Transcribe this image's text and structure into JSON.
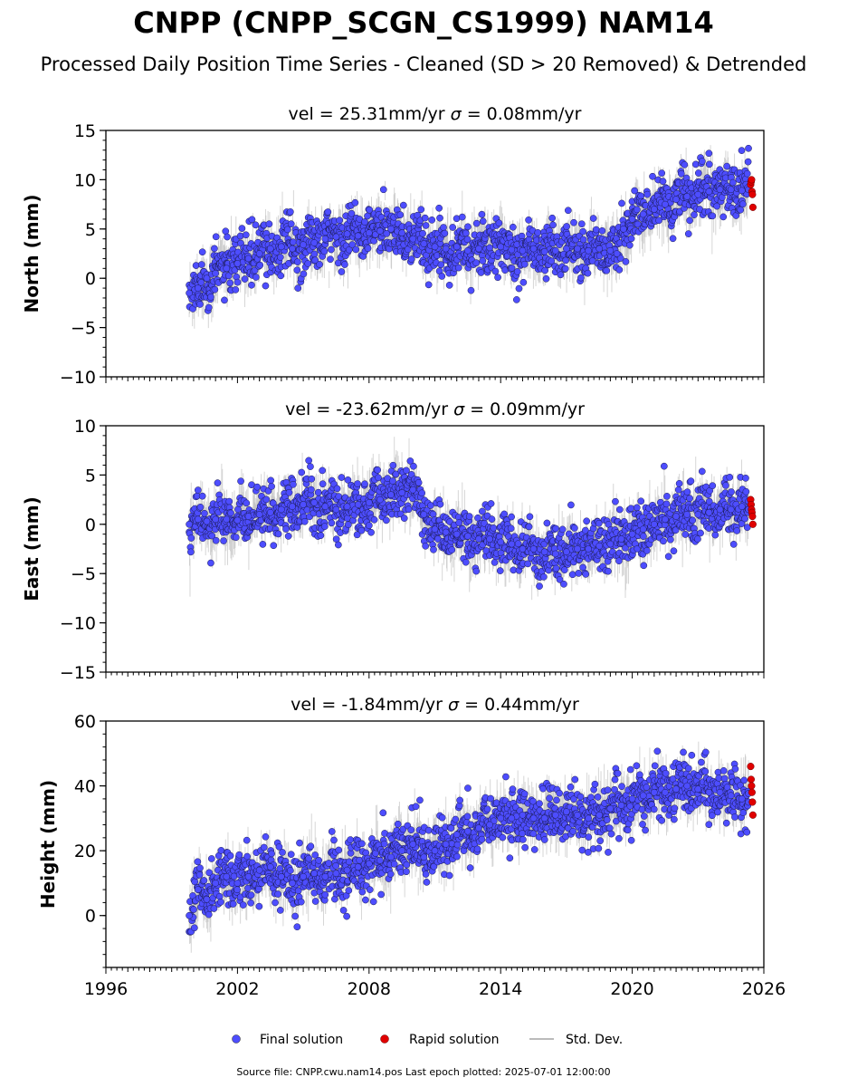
{
  "title": "CNPP (CNPP_SCGN_CS1999) NAM14",
  "subtitle": "Processed Daily Position Time Series - Cleaned (SD > 20 Removed) & Detrended",
  "legend": {
    "final": "Final solution",
    "rapid": "Rapid solution",
    "std": "Std. Dev."
  },
  "footer": "Source file: CNPP.cwu.nam14.pos  Last epoch plotted: 2025-07-01 12:00:00",
  "colors": {
    "final": "#4d4dff",
    "rapid": "#e00000",
    "std": "#bbbbbb"
  },
  "chart_data": [
    {
      "type": "scatter",
      "title_prefix": "vel = 25.31mm/yr",
      "sigma_label": "σ",
      "sigma_value": " = 0.08mm/yr",
      "ylabel": "North (mm)",
      "xlim": [
        1996,
        2026
      ],
      "ylim": [
        -10,
        15
      ],
      "xticks": [
        1996,
        2002,
        2008,
        2014,
        2020,
        2026
      ],
      "yticks": [
        -10,
        -5,
        0,
        5,
        10,
        15
      ],
      "show_xtick_labels": false,
      "series": [
        {
          "name": "Final solution",
          "x": [
            1999.8,
            2000.2,
            2000.6,
            2001.0,
            2001.5,
            2002.0,
            2002.5,
            2003.0,
            2003.5,
            2004.0,
            2004.5,
            2005.0,
            2005.5,
            2006.0,
            2006.5,
            2007.0,
            2007.5,
            2008.0,
            2008.5,
            2009.0,
            2009.5,
            2010.0,
            2010.5,
            2011.0,
            2011.5,
            2012.0,
            2012.5,
            2013.0,
            2013.5,
            2014.0,
            2014.5,
            2015.0,
            2015.5,
            2016.0,
            2016.5,
            2017.0,
            2017.5,
            2018.0,
            2018.5,
            2019.0,
            2019.3,
            2019.6,
            2020.0,
            2020.5,
            2021.0,
            2021.5,
            2022.0,
            2022.5,
            2023.0,
            2023.5,
            2024.0,
            2024.5,
            2025.0,
            2025.3
          ],
          "y": [
            -1.5,
            -1.0,
            0.0,
            0.5,
            1.0,
            1.5,
            2.0,
            2.5,
            3.0,
            3.2,
            3.0,
            3.4,
            3.6,
            4.0,
            4.2,
            4.5,
            4.3,
            4.6,
            4.8,
            5.0,
            4.6,
            4.0,
            3.5,
            3.2,
            3.0,
            3.2,
            2.8,
            3.0,
            3.1,
            3.2,
            2.9,
            2.8,
            3.0,
            2.7,
            2.8,
            3.0,
            3.0,
            2.8,
            3.0,
            2.8,
            2.5,
            5.0,
            6.0,
            6.5,
            7.0,
            7.5,
            8.0,
            8.3,
            8.5,
            8.8,
            9.0,
            9.0,
            8.9,
            9.0
          ]
        },
        {
          "name": "Rapid solution",
          "x": [
            2025.4,
            2025.42,
            2025.44,
            2025.46,
            2025.48,
            2025.5
          ],
          "y": [
            9.5,
            9.8,
            10.0,
            8.8,
            8.5,
            7.2
          ]
        }
      ]
    },
    {
      "type": "scatter",
      "title_prefix": "vel = -23.62mm/yr",
      "sigma_label": "σ",
      "sigma_value": " = 0.09mm/yr",
      "ylabel": "East (mm)",
      "xlim": [
        1996,
        2026
      ],
      "ylim": [
        -15,
        10
      ],
      "xticks": [
        1996,
        2002,
        2008,
        2014,
        2020,
        2026
      ],
      "yticks": [
        -15,
        -10,
        -5,
        0,
        5
      ],
      "ytick_labels_top": 10,
      "show_xtick_labels": false,
      "series": [
        {
          "name": "Final solution",
          "x": [
            1999.8,
            2000.2,
            2000.6,
            2001.0,
            2001.5,
            2002.0,
            2002.5,
            2003.0,
            2003.5,
            2004.0,
            2004.5,
            2005.0,
            2005.5,
            2006.0,
            2006.5,
            2007.0,
            2007.5,
            2008.0,
            2008.5,
            2009.0,
            2009.5,
            2010.0,
            2010.5,
            2011.0,
            2011.5,
            2012.0,
            2012.5,
            2013.0,
            2013.5,
            2014.0,
            2014.5,
            2015.0,
            2015.5,
            2016.0,
            2016.5,
            2017.0,
            2017.5,
            2018.0,
            2018.5,
            2019.0,
            2019.5,
            2020.0,
            2020.5,
            2021.0,
            2021.5,
            2022.0,
            2022.5,
            2023.0,
            2023.5,
            2024.0,
            2024.5,
            2025.0,
            2025.3
          ],
          "y": [
            0.0,
            0.5,
            0.3,
            0.5,
            0.5,
            0.4,
            0.8,
            1.0,
            1.2,
            1.5,
            1.8,
            2.0,
            2.2,
            1.8,
            1.5,
            1.8,
            2.0,
            2.2,
            2.5,
            3.0,
            3.2,
            3.5,
            1.0,
            -0.5,
            -0.8,
            -1.0,
            -1.2,
            -1.5,
            -1.5,
            -1.8,
            -2.0,
            -2.5,
            -2.5,
            -2.8,
            -3.0,
            -2.8,
            -2.5,
            -2.5,
            -2.2,
            -2.0,
            -1.5,
            -1.0,
            -0.5,
            0.0,
            0.5,
            0.8,
            1.0,
            1.0,
            1.2,
            1.5,
            1.5,
            1.8,
            1.5
          ]
        },
        {
          "name": "Rapid solution",
          "x": [
            2025.4,
            2025.42,
            2025.44,
            2025.46,
            2025.48,
            2025.5
          ],
          "y": [
            2.5,
            2.0,
            1.5,
            1.2,
            0.8,
            0.0
          ]
        }
      ]
    },
    {
      "type": "scatter",
      "title_prefix": "vel = -1.84mm/yr",
      "sigma_label": "σ",
      "sigma_value": " = 0.44mm/yr",
      "ylabel": "Height (mm)",
      "xlim": [
        1996,
        2026
      ],
      "ylim": [
        -16,
        60
      ],
      "xticks": [
        1996,
        2002,
        2008,
        2014,
        2020,
        2026
      ],
      "yticks": [
        0,
        20,
        40,
        60
      ],
      "show_xtick_labels": true,
      "series": [
        {
          "name": "Final solution",
          "x": [
            1999.8,
            2000.2,
            2000.6,
            2001.0,
            2001.5,
            2002.0,
            2002.5,
            2003.0,
            2003.5,
            2004.0,
            2004.5,
            2005.0,
            2005.5,
            2006.0,
            2006.5,
            2007.0,
            2007.5,
            2008.0,
            2008.5,
            2009.0,
            2009.5,
            2010.0,
            2010.5,
            2011.0,
            2011.5,
            2012.0,
            2012.5,
            2013.0,
            2013.5,
            2014.0,
            2014.5,
            2015.0,
            2015.5,
            2016.0,
            2016.5,
            2017.0,
            2017.5,
            2018.0,
            2018.5,
            2019.0,
            2019.5,
            2020.0,
            2020.5,
            2021.0,
            2021.5,
            2022.0,
            2022.5,
            2023.0,
            2023.5,
            2024.0,
            2024.5,
            2025.0,
            2025.3
          ],
          "y": [
            0.0,
            8.0,
            5.0,
            10.0,
            12.0,
            10.0,
            12.0,
            14.0,
            15.0,
            12.0,
            10.0,
            12.0,
            13.0,
            12.0,
            13.0,
            14.0,
            15.0,
            16.0,
            17.0,
            18.0,
            20.0,
            22.0,
            18.0,
            20.0,
            22.0,
            25.0,
            26.0,
            27.0,
            28.0,
            30.0,
            30.0,
            31.0,
            30.0,
            30.0,
            31.0,
            32.0,
            31.0,
            30.0,
            31.0,
            33.0,
            34.0,
            36.0,
            37.0,
            38.0,
            38.0,
            39.0,
            40.0,
            39.0,
            38.0,
            38.0,
            37.0,
            36.0,
            35.0
          ]
        },
        {
          "name": "Rapid solution",
          "x": [
            2025.4,
            2025.42,
            2025.44,
            2025.46,
            2025.48,
            2025.5
          ],
          "y": [
            46.0,
            42.0,
            40.0,
            38.0,
            35.0,
            31.0
          ]
        }
      ]
    }
  ]
}
